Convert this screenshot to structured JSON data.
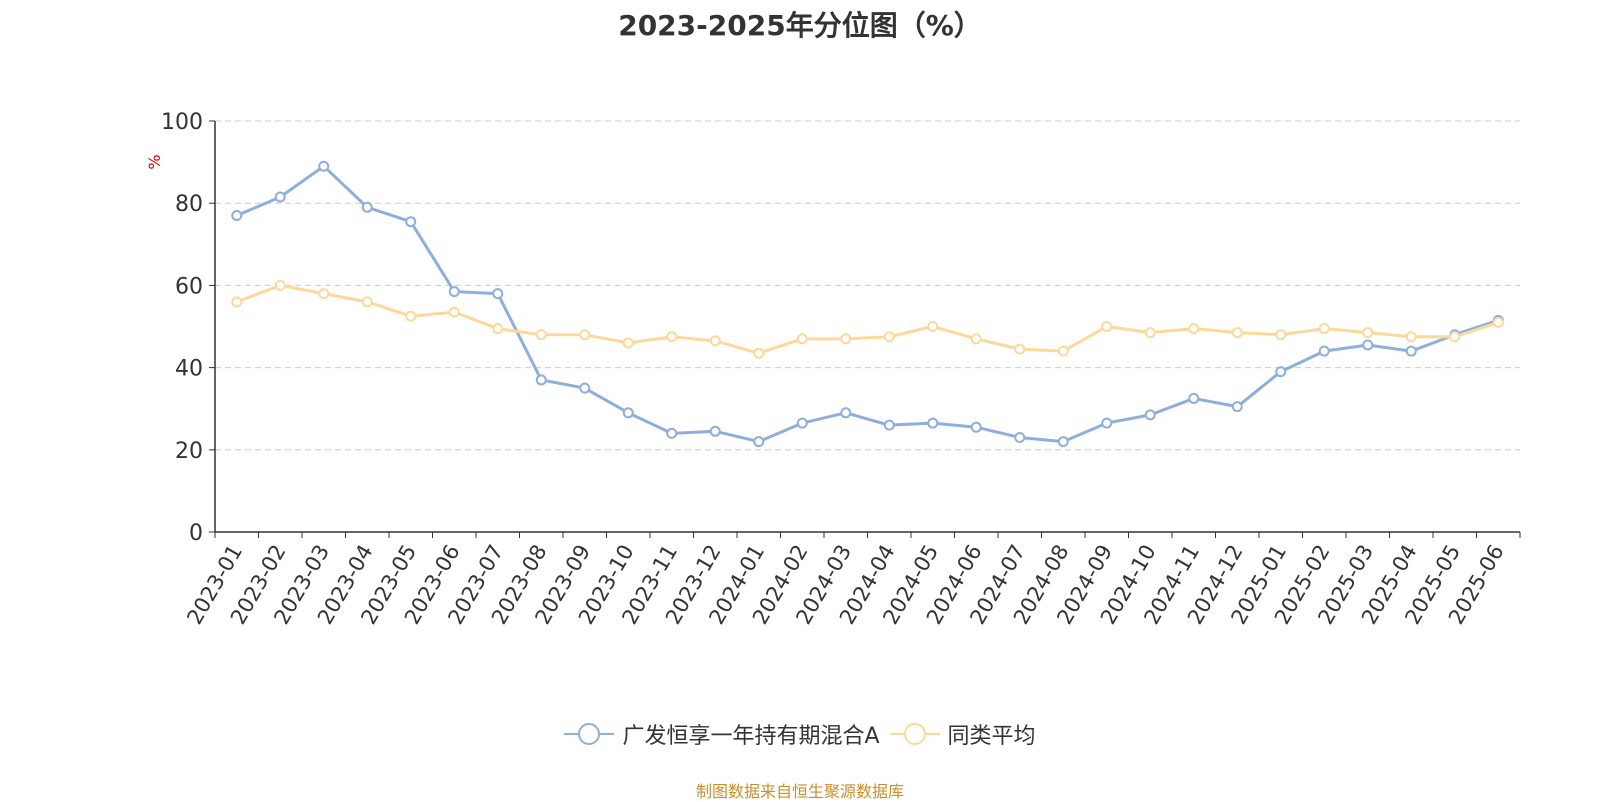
{
  "title": "2023-2025年分位图（%）",
  "source_note": "制图数据来自恒生聚源数据库",
  "colors": {
    "series_a": "#8eaedb",
    "series_b": "#fcd99b",
    "grid": "#cccccc",
    "axis": "#333333",
    "ylabel": "#e00000"
  },
  "chart_data": {
    "type": "line",
    "title": "2023-2025年分位图（%）",
    "xlabel": "",
    "ylabel": "%",
    "ylim": [
      0,
      100
    ],
    "yticks": [
      0,
      20,
      40,
      60,
      80,
      100
    ],
    "grid": true,
    "legend_position": "bottom",
    "categories": [
      "2023-01",
      "2023-02",
      "2023-03",
      "2023-04",
      "2023-05",
      "2023-06",
      "2023-07",
      "2023-08",
      "2023-09",
      "2023-10",
      "2023-11",
      "2023-12",
      "2024-01",
      "2024-02",
      "2024-03",
      "2024-04",
      "2024-05",
      "2024-06",
      "2024-07",
      "2024-08",
      "2024-09",
      "2024-10",
      "2024-11",
      "2024-12",
      "2025-01",
      "2025-02",
      "2025-03",
      "2025-04",
      "2025-05",
      "2025-06"
    ],
    "series": [
      {
        "name": "广发恒享一年持有期混合A",
        "color": "#8eaedb",
        "values": [
          77,
          81.5,
          89,
          79,
          75.5,
          58.5,
          58,
          37,
          35,
          29,
          24,
          24.5,
          22,
          26.5,
          29,
          26,
          26.5,
          25.5,
          23,
          22,
          26.5,
          28.5,
          32.5,
          30.5,
          39,
          44,
          45.5,
          44,
          48,
          51.5
        ]
      },
      {
        "name": "同类平均",
        "color": "#fcd99b",
        "values": [
          56,
          60,
          58,
          56,
          52.5,
          53.5,
          49.5,
          48,
          48,
          46,
          47.5,
          46.5,
          43.5,
          47,
          47,
          47.5,
          50,
          47,
          44.5,
          44,
          50,
          48.5,
          49.5,
          48.5,
          48,
          49.5,
          48.5,
          47.5,
          47.5,
          51
        ]
      }
    ]
  }
}
